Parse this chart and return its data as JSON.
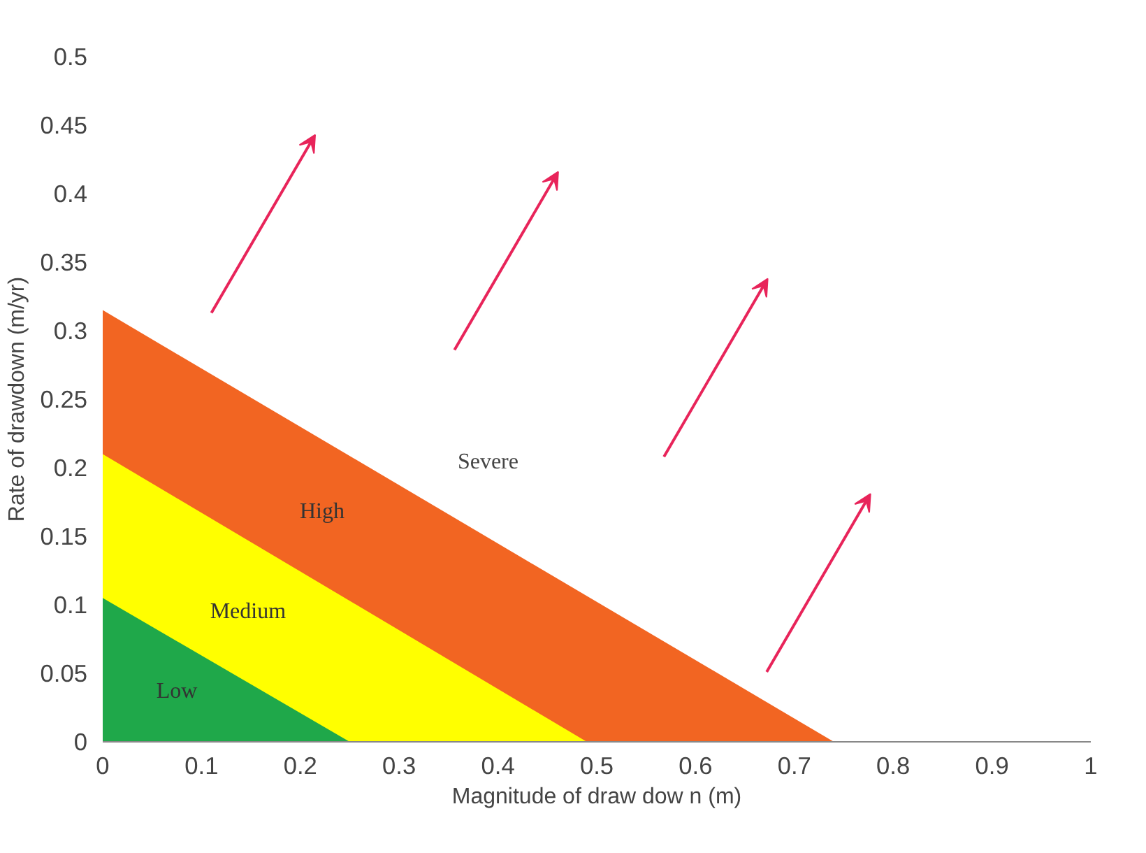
{
  "chart_data": {
    "type": "area",
    "xlabel": "Magnitude of draw dow n (m)",
    "ylabel": "Rate of drawdown (m/yr)",
    "xlim": [
      0,
      1
    ],
    "ylim": [
      0,
      0.5
    ],
    "xticks": [
      0,
      0.1,
      0.2,
      0.3,
      0.4,
      0.5,
      0.6,
      0.7,
      0.8,
      0.9,
      1
    ],
    "yticks": [
      0,
      0.05,
      0.1,
      0.15,
      0.2,
      0.25,
      0.3,
      0.35,
      0.4,
      0.45,
      0.5
    ],
    "grid": false,
    "series": [
      {
        "name": "High",
        "color": "#f26522",
        "x": [
          0,
          0.74
        ],
        "values": [
          0.315,
          0
        ]
      },
      {
        "name": "Medium",
        "color": "#ffff00",
        "x": [
          0,
          0.49
        ],
        "values": [
          0.21,
          0
        ]
      },
      {
        "name": "Low",
        "color": "#1fa84a",
        "x": [
          0,
          0.25
        ],
        "values": [
          0.105,
          0
        ]
      }
    ],
    "annotations": [
      "Severe"
    ]
  }
}
